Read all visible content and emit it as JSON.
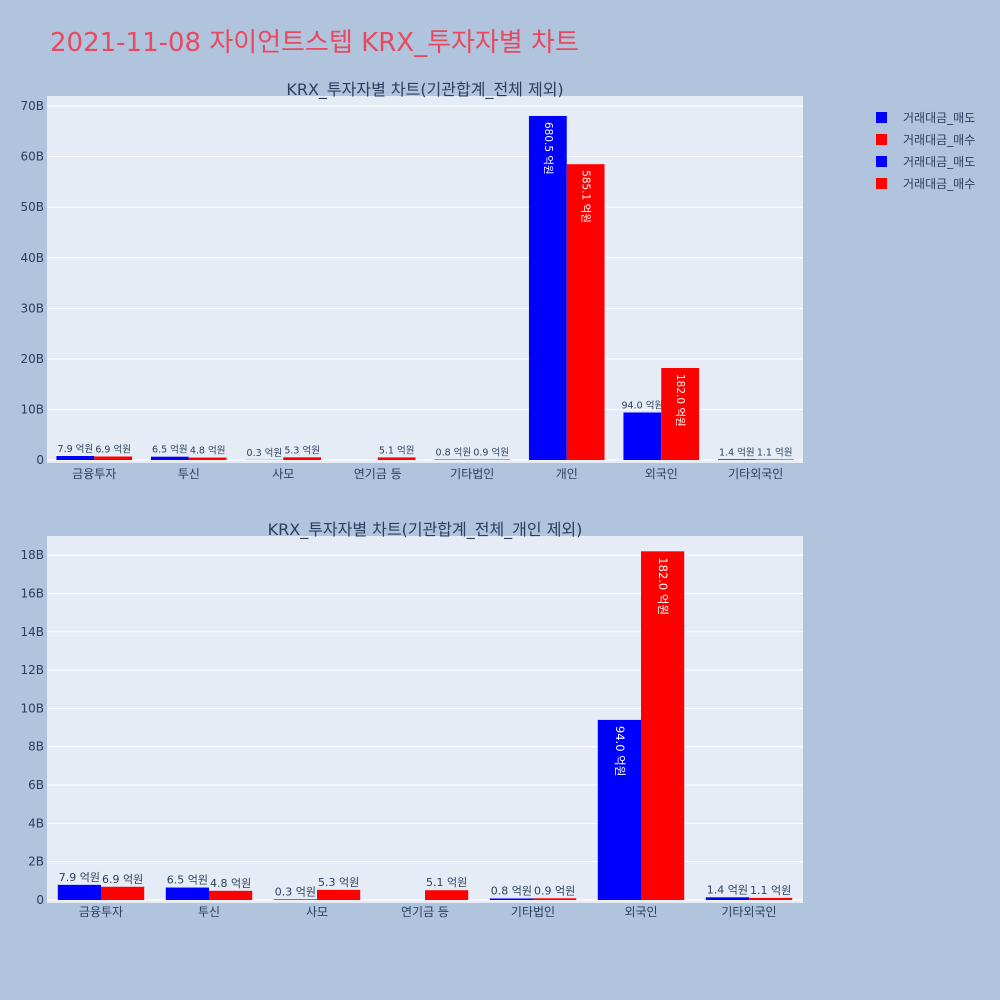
{
  "page_title": "2021-11-08 자이언트스텝 KRX_투자자별 차트",
  "colors": {
    "sell": "#0000ff",
    "buy": "#ff0000",
    "plot_bg": "#e5ecf6",
    "paper_bg": "#b0c4de",
    "title": "#e8495f",
    "text": "#2a3f5f"
  },
  "legend": [
    {
      "label": "거래대금_매도",
      "color": "#0000ff"
    },
    {
      "label": "거래대금_매수",
      "color": "#ff0000"
    },
    {
      "label": "거래대금_매도",
      "color": "#0000ff"
    },
    {
      "label": "거래대금_매수",
      "color": "#ff0000"
    }
  ],
  "chart_data": [
    {
      "type": "bar",
      "title": "KRX_투자자별 차트(기관합계_전체 제외)",
      "categories": [
        "금융투자",
        "투신",
        "사모",
        "연기금 등",
        "기타법인",
        "개인",
        "외국인",
        "기타외국인"
      ],
      "series": [
        {
          "name": "거래대금_매도",
          "color": "#0000ff",
          "values": [
            790000000,
            650000000,
            30000000,
            0,
            80000000,
            68050000000,
            9400000000,
            140000000
          ],
          "labels": [
            "7.9 억원",
            "6.5 억원",
            "0.3 억원",
            "",
            "0.8 억원",
            "680.5 억원",
            "94.0 억원",
            "1.4 억원"
          ]
        },
        {
          "name": "거래대금_매수",
          "color": "#ff0000",
          "values": [
            690000000,
            480000000,
            530000000,
            510000000,
            90000000,
            58510000000,
            18200000000,
            110000000
          ],
          "labels": [
            "6.9 억원",
            "4.8 억원",
            "5.3 억원",
            "5.1 억원",
            "0.9 억원",
            "585.1 억원",
            "182.0 억원",
            "1.1 억원"
          ]
        }
      ],
      "ylim": [
        0,
        72000000000
      ],
      "yticks": [
        0,
        10000000000,
        20000000000,
        30000000000,
        40000000000,
        50000000000,
        60000000000,
        70000000000
      ],
      "ytick_labels": [
        "0",
        "10B",
        "20B",
        "30B",
        "40B",
        "50B",
        "60B",
        "70B"
      ],
      "grid": true
    },
    {
      "type": "bar",
      "title": "KRX_투자자별 차트(기관합계_전체_개인 제외)",
      "categories": [
        "금융투자",
        "투신",
        "사모",
        "연기금 등",
        "기타법인",
        "외국인",
        "기타외국인"
      ],
      "series": [
        {
          "name": "거래대금_매도",
          "color": "#0000ff",
          "values": [
            790000000,
            650000000,
            30000000,
            0,
            80000000,
            9400000000,
            140000000
          ],
          "labels": [
            "7.9 억원",
            "6.5 억원",
            "0.3 억원",
            "",
            "0.8 억원",
            "94.0 억원",
            "1.4 억원"
          ]
        },
        {
          "name": "거래대금_매수",
          "color": "#ff0000",
          "values": [
            690000000,
            480000000,
            530000000,
            510000000,
            90000000,
            18200000000,
            110000000
          ],
          "labels": [
            "6.9 억원",
            "4.8 억원",
            "5.3 억원",
            "5.1 억원",
            "0.9 억원",
            "182.0 억원",
            "1.1 억원"
          ]
        }
      ],
      "ylim": [
        0,
        19000000000
      ],
      "yticks": [
        0,
        2000000000,
        4000000000,
        6000000000,
        8000000000,
        10000000000,
        12000000000,
        14000000000,
        16000000000,
        18000000000
      ],
      "ytick_labels": [
        "0",
        "2B",
        "4B",
        "6B",
        "8B",
        "10B",
        "12B",
        "14B",
        "16B",
        "18B"
      ],
      "grid": true
    }
  ]
}
